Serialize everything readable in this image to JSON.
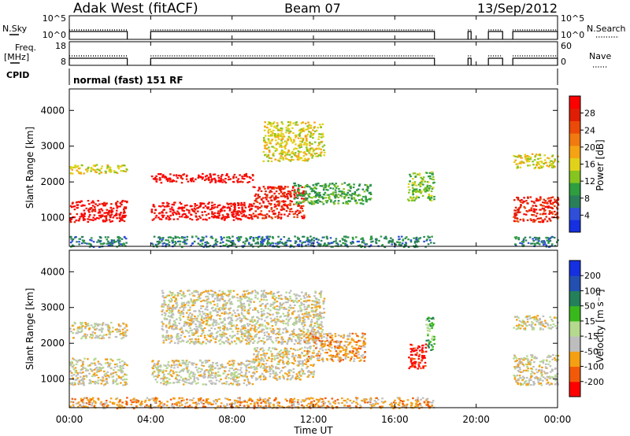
{
  "header": {
    "radar": "Adak West (fitACF)",
    "beam": "Beam 07",
    "date": "13/Sep/2012"
  },
  "strip_nsky": {
    "left_label": "N.Sky",
    "left_ticks": [
      "10^5",
      "10^0"
    ],
    "right_ticks": [
      "10^5",
      "10^0"
    ],
    "right_label": "N.Search"
  },
  "strip_freq": {
    "left_label_top": "Freq.",
    "left_label_bottom": "[MHz]",
    "left_ticks": [
      "18",
      "8"
    ],
    "right_ticks": [
      "60",
      "0"
    ],
    "right_label": "Nave"
  },
  "cpid": {
    "label": "CPID",
    "program": "normal (fast) 151 RF"
  },
  "x_axis": {
    "label": "Time UT",
    "ticks": [
      "00:00",
      "04:00",
      "08:00",
      "12:00",
      "16:00",
      "20:00",
      "00:00"
    ]
  },
  "colors": {
    "frame": "#000000",
    "ground_grey": "#bdbdbd"
  },
  "chart_data": [
    {
      "type": "heatmap",
      "name": "power",
      "ylabel": "Slant Range [km]",
      "yticks": [
        1000,
        2000,
        3000,
        4000
      ],
      "ylim": [
        200,
        4600
      ],
      "xlim_hours": [
        0,
        24
      ],
      "colorbar": {
        "label": "Power [dB]",
        "ticks": [
          "4",
          "8",
          "12",
          "16",
          "20",
          "24",
          "28"
        ],
        "colors": [
          "#1530e0",
          "#2f4fd8",
          "#2a7f5a",
          "#2e9e3e",
          "#86c41f",
          "#e0d21a",
          "#f5a314",
          "#f07a10",
          "#eb4a08",
          "#e01e05",
          "#ff0000"
        ]
      },
      "regions": [
        {
          "t0": 0.0,
          "t1": 2.8,
          "r0": 900,
          "r1": 1500,
          "level": 10
        },
        {
          "t0": 0.0,
          "t1": 2.8,
          "r0": 2250,
          "r1": 2500,
          "level": 5
        },
        {
          "t0": 0.0,
          "t1": 2.8,
          "r0": 200,
          "r1": 500,
          "level": 2
        },
        {
          "t0": 4.0,
          "t1": 9.0,
          "r0": 950,
          "r1": 1450,
          "level": 10
        },
        {
          "t0": 4.0,
          "t1": 9.0,
          "r0": 2000,
          "r1": 2250,
          "level": 10
        },
        {
          "t0": 4.0,
          "t1": 17.9,
          "r0": 200,
          "r1": 500,
          "level": 2
        },
        {
          "t0": 9.0,
          "t1": 11.5,
          "r0": 1000,
          "r1": 1900,
          "level": 9
        },
        {
          "t0": 11.0,
          "t1": 14.8,
          "r0": 1400,
          "r1": 2000,
          "level": 3
        },
        {
          "t0": 9.5,
          "t1": 12.5,
          "r0": 2600,
          "r1": 3700,
          "level": 5
        },
        {
          "t0": 16.6,
          "t1": 17.9,
          "r0": 1500,
          "r1": 2300,
          "level": 4
        },
        {
          "t0": 21.8,
          "t1": 24.0,
          "r0": 900,
          "r1": 1600,
          "level": 9
        },
        {
          "t0": 21.8,
          "t1": 24.0,
          "r0": 2400,
          "r1": 2800,
          "level": 5
        },
        {
          "t0": 21.8,
          "t1": 24.0,
          "r0": 200,
          "r1": 500,
          "level": 2
        }
      ]
    },
    {
      "type": "heatmap",
      "name": "velocity",
      "ylabel": "Slant Range [km]",
      "yticks": [
        1000,
        2000,
        3000,
        4000
      ],
      "ylim": [
        200,
        4600
      ],
      "xlim_hours": [
        0,
        24
      ],
      "colorbar": {
        "label": "Velocity [m s⁻¹]",
        "ticks": [
          "-200",
          "-100",
          "-50",
          "-15",
          "15",
          "50",
          "100",
          "200"
        ],
        "colors": [
          "#ff0000",
          "#f25a0a",
          "#f5a012",
          "#bdbdbd",
          "#b5d98e",
          "#39b81c",
          "#23805a",
          "#2350b0",
          "#1530e0"
        ]
      },
      "regions": [
        {
          "t0": 0.0,
          "t1": 2.8,
          "r0": 850,
          "r1": 1600,
          "level": 3
        },
        {
          "t0": 0.0,
          "t1": 2.8,
          "r0": 2150,
          "r1": 2600,
          "level": 3
        },
        {
          "t0": 4.0,
          "t1": 9.0,
          "r0": 850,
          "r1": 1550,
          "level": 3
        },
        {
          "t0": 9.0,
          "t1": 12.0,
          "r0": 1000,
          "r1": 1900,
          "level": 3
        },
        {
          "t0": 4.5,
          "t1": 12.5,
          "r0": 2000,
          "r1": 3500,
          "level": 3
        },
        {
          "t0": 11.5,
          "t1": 14.5,
          "r0": 1500,
          "r1": 2300,
          "level": 2
        },
        {
          "t0": 0.0,
          "t1": 17.9,
          "r0": 200,
          "r1": 500,
          "level": 2
        },
        {
          "t0": 16.6,
          "t1": 17.5,
          "r0": 1300,
          "r1": 2000,
          "level": 0
        },
        {
          "t0": 17.5,
          "t1": 17.9,
          "r0": 1800,
          "r1": 2800,
          "level": 5
        },
        {
          "t0": 21.8,
          "t1": 24.0,
          "r0": 850,
          "r1": 1700,
          "level": 3
        },
        {
          "t0": 21.8,
          "t1": 24.0,
          "r0": 2400,
          "r1": 2800,
          "level": 3
        }
      ]
    }
  ]
}
